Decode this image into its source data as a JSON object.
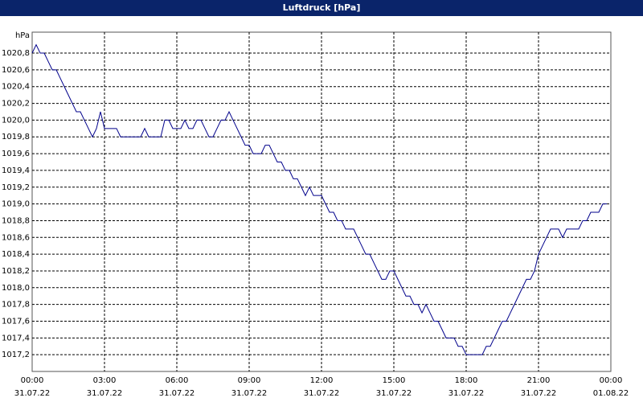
{
  "chart_data": {
    "type": "line",
    "title": "Luftdruck [hPa]",
    "y_unit": "hPa",
    "grid": true,
    "xlim": [
      0,
      1440
    ],
    "xticks": [
      {
        "value": 0,
        "label": "00:00",
        "date": "31.07.22"
      },
      {
        "value": 180,
        "label": "03:00",
        "date": "31.07.22"
      },
      {
        "value": 360,
        "label": "06:00",
        "date": "31.07.22"
      },
      {
        "value": 540,
        "label": "09:00",
        "date": "31.07.22"
      },
      {
        "value": 720,
        "label": "12:00",
        "date": "31.07.22"
      },
      {
        "value": 900,
        "label": "15:00",
        "date": "31.07.22"
      },
      {
        "value": 1080,
        "label": "18:00",
        "date": "31.07.22"
      },
      {
        "value": 1260,
        "label": "21:00",
        "date": "31.07.22"
      },
      {
        "value": 1440,
        "label": "00:00",
        "date": "01.08.22"
      }
    ],
    "ylim": [
      1017.0,
      1021.05
    ],
    "yticks": [
      {
        "value": 1017.2,
        "label": "1017,2"
      },
      {
        "value": 1017.4,
        "label": "1017,4"
      },
      {
        "value": 1017.6,
        "label": "1017,6"
      },
      {
        "value": 1017.8,
        "label": "1017,8"
      },
      {
        "value": 1018.0,
        "label": "1018,0"
      },
      {
        "value": 1018.2,
        "label": "1018,2"
      },
      {
        "value": 1018.4,
        "label": "1018,4"
      },
      {
        "value": 1018.6,
        "label": "1018,6"
      },
      {
        "value": 1018.8,
        "label": "1018,8"
      },
      {
        "value": 1019.0,
        "label": "1019,0"
      },
      {
        "value": 1019.2,
        "label": "1019,2"
      },
      {
        "value": 1019.4,
        "label": "1019,4"
      },
      {
        "value": 1019.6,
        "label": "1019,6"
      },
      {
        "value": 1019.8,
        "label": "1019,8"
      },
      {
        "value": 1020.0,
        "label": "1020,0"
      },
      {
        "value": 1020.2,
        "label": "1020,2"
      },
      {
        "value": 1020.4,
        "label": "1020,4"
      },
      {
        "value": 1020.6,
        "label": "1020,6"
      },
      {
        "value": 1020.8,
        "label": "1020,8"
      }
    ],
    "color": "#00008b",
    "x": [
      0,
      10,
      20,
      30,
      40,
      50,
      60,
      70,
      80,
      90,
      100,
      110,
      120,
      130,
      140,
      150,
      160,
      170,
      180,
      210,
      220,
      270,
      280,
      290,
      320,
      330,
      340,
      350,
      370,
      380,
      390,
      400,
      410,
      420,
      430,
      440,
      450,
      460,
      470,
      480,
      490,
      500,
      510,
      520,
      530,
      540,
      550,
      570,
      580,
      590,
      600,
      610,
      620,
      630,
      640,
      650,
      660,
      670,
      680,
      690,
      700,
      720,
      730,
      740,
      750,
      760,
      770,
      780,
      800,
      810,
      820,
      830,
      840,
      850,
      860,
      870,
      880,
      890,
      900,
      910,
      920,
      930,
      940,
      950,
      960,
      970,
      980,
      990,
      1000,
      1010,
      1020,
      1030,
      1050,
      1060,
      1070,
      1080,
      1120,
      1130,
      1140,
      1150,
      1160,
      1170,
      1180,
      1190,
      1200,
      1210,
      1220,
      1230,
      1240,
      1250,
      1260,
      1270,
      1280,
      1290,
      1310,
      1320,
      1330,
      1360,
      1370,
      1380,
      1390,
      1410,
      1420,
      1430
    ],
    "values": [
      1020.8,
      1020.9,
      1020.8,
      1020.8,
      1020.7,
      1020.6,
      1020.6,
      1020.5,
      1020.4,
      1020.3,
      1020.2,
      1020.1,
      1020.1,
      1020.0,
      1019.9,
      1019.8,
      1019.9,
      1020.1,
      1019.9,
      1019.9,
      1019.8,
      1019.8,
      1019.9,
      1019.8,
      1019.8,
      1020.0,
      1020.0,
      1019.9,
      1019.9,
      1020.0,
      1019.9,
      1019.9,
      1020.0,
      1020.0,
      1019.9,
      1019.8,
      1019.8,
      1019.9,
      1020.0,
      1020.0,
      1020.1,
      1020.0,
      1019.9,
      1019.8,
      1019.7,
      1019.7,
      1019.6,
      1019.6,
      1019.7,
      1019.7,
      1019.6,
      1019.5,
      1019.5,
      1019.4,
      1019.4,
      1019.3,
      1019.3,
      1019.2,
      1019.1,
      1019.2,
      1019.1,
      1019.1,
      1019.0,
      1018.9,
      1018.9,
      1018.8,
      1018.8,
      1018.7,
      1018.7,
      1018.6,
      1018.5,
      1018.4,
      1018.4,
      1018.3,
      1018.2,
      1018.1,
      1018.1,
      1018.2,
      1018.2,
      1018.1,
      1018.0,
      1017.9,
      1017.9,
      1017.8,
      1017.8,
      1017.7,
      1017.8,
      1017.7,
      1017.6,
      1017.6,
      1017.5,
      1017.4,
      1017.4,
      1017.3,
      1017.3,
      1017.2,
      1017.2,
      1017.3,
      1017.3,
      1017.4,
      1017.5,
      1017.6,
      1017.6,
      1017.7,
      1017.8,
      1017.9,
      1018.0,
      1018.1,
      1018.1,
      1018.2,
      1018.4,
      1018.5,
      1018.6,
      1018.7,
      1018.7,
      1018.6,
      1018.7,
      1018.7,
      1018.8,
      1018.8,
      1018.9,
      1018.9,
      1019.0,
      1019.0
    ]
  }
}
